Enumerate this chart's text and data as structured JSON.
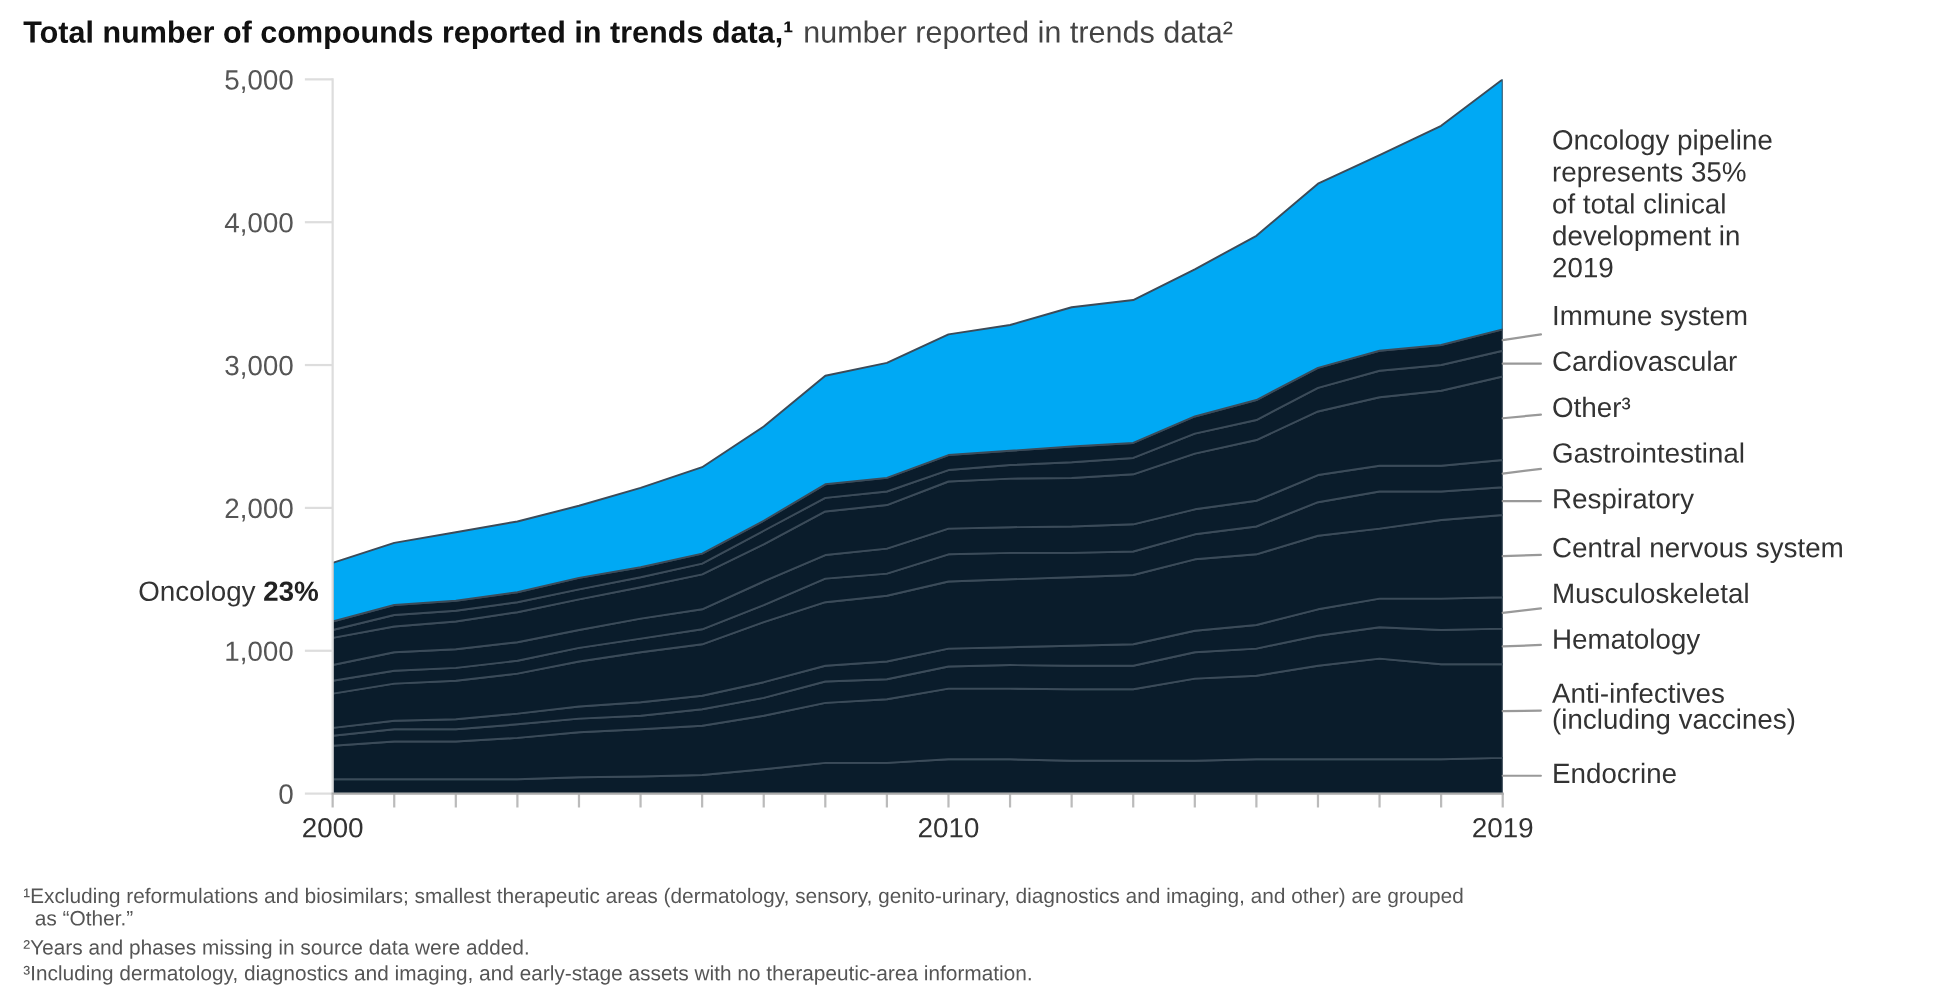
{
  "chart_data": {
    "type": "area",
    "stacked": true,
    "title": "Total number of compounds reported in trends data,¹",
    "subtitle": "number reported in trends data²",
    "x": [
      2000,
      2001,
      2002,
      2003,
      2004,
      2005,
      2006,
      2007,
      2008,
      2009,
      2010,
      2011,
      2012,
      2013,
      2014,
      2015,
      2016,
      2017,
      2018,
      2019
    ],
    "series": [
      {
        "name": "Endocrine",
        "color": "#0a1c2b",
        "values": [
          100,
          100,
          100,
          100,
          115,
          120,
          130,
          170,
          215,
          215,
          240,
          240,
          230,
          230,
          230,
          240,
          240,
          240,
          240,
          250
        ]
      },
      {
        "name": "Anti-infectives\n(including vaccines)",
        "color": "#0a1c2b",
        "values": [
          235,
          265,
          265,
          290,
          315,
          330,
          345,
          375,
          420,
          445,
          495,
          495,
          500,
          500,
          575,
          585,
          655,
          705,
          665,
          655
        ]
      },
      {
        "name": "Hematology",
        "color": "#0a1c2b",
        "values": [
          70,
          85,
          85,
          95,
          95,
          95,
          115,
          125,
          150,
          140,
          155,
          165,
          165,
          165,
          185,
          190,
          210,
          220,
          240,
          250
        ]
      },
      {
        "name": "Musculoskeletal",
        "color": "#0a1c2b",
        "values": [
          55,
          60,
          70,
          75,
          85,
          95,
          95,
          110,
          110,
          125,
          125,
          125,
          140,
          150,
          150,
          165,
          185,
          200,
          220,
          220
        ]
      },
      {
        "name": "Central nervous system",
        "color": "#0a1c2b",
        "values": [
          240,
          260,
          270,
          280,
          315,
          350,
          360,
          420,
          445,
          460,
          470,
          475,
          480,
          485,
          500,
          495,
          515,
          490,
          550,
          575
        ]
      },
      {
        "name": "Respiratory",
        "color": "#0a1c2b",
        "values": [
          90,
          90,
          90,
          90,
          95,
          95,
          105,
          120,
          165,
          155,
          190,
          185,
          170,
          165,
          175,
          195,
          235,
          260,
          200,
          195
        ]
      },
      {
        "name": "Gastrointestinal",
        "color": "#0a1c2b",
        "values": [
          110,
          130,
          130,
          130,
          125,
          140,
          140,
          165,
          165,
          175,
          180,
          180,
          185,
          190,
          175,
          180,
          190,
          180,
          180,
          190
        ]
      },
      {
        "name": "Other³",
        "color": "#0a1c2b",
        "values": [
          190,
          180,
          195,
          210,
          215,
          220,
          245,
          260,
          305,
          305,
          330,
          340,
          340,
          350,
          390,
          425,
          445,
          480,
          525,
          585
        ]
      },
      {
        "name": "Cardiovascular",
        "color": "#0a1c2b",
        "values": [
          55,
          80,
          75,
          70,
          70,
          70,
          75,
          95,
          95,
          95,
          80,
          95,
          110,
          115,
          140,
          140,
          165,
          185,
          180,
          180
        ]
      },
      {
        "name": "Immune system",
        "color": "#0a1c2b",
        "values": [
          60,
          70,
          70,
          70,
          80,
          70,
          70,
          70,
          95,
          95,
          105,
          100,
          110,
          105,
          120,
          140,
          140,
          140,
          140,
          150
        ]
      },
      {
        "name": "Oncology",
        "color": "#00a9f4",
        "values": [
          410,
          435,
          480,
          495,
          505,
          555,
          605,
          660,
          760,
          805,
          845,
          880,
          975,
          1000,
          1030,
          1150,
          1290,
          1370,
          1535,
          1750
        ]
      }
    ],
    "xlim": [
      2000,
      2019
    ],
    "ylim": [
      0,
      5000
    ],
    "xticks": [
      2000,
      {
        "value": 2001,
        "label": null
      },
      {
        "value": 2002,
        "label": null
      },
      {
        "value": 2003,
        "label": null
      },
      {
        "value": 2004,
        "label": null
      },
      {
        "value": 2005,
        "label": null
      },
      {
        "value": 2006,
        "label": null
      },
      {
        "value": 2007,
        "label": null
      },
      {
        "value": 2008,
        "label": null
      },
      {
        "value": 2009,
        "label": null
      },
      2010,
      {
        "value": 2011,
        "label": null
      },
      {
        "value": 2012,
        "label": null
      },
      {
        "value": 2013,
        "label": null
      },
      {
        "value": 2014,
        "label": null
      },
      {
        "value": 2015,
        "label": null
      },
      {
        "value": 2016,
        "label": null
      },
      {
        "value": 2017,
        "label": null
      },
      {
        "value": 2018,
        "label": null
      },
      2019
    ],
    "yticks": [
      0,
      {
        "value": 1000,
        "label": "1,000"
      },
      {
        "value": 2000,
        "label": "2,000"
      },
      {
        "value": 3000,
        "label": "3,000"
      },
      {
        "value": 4000,
        "label": "4,000"
      },
      {
        "value": 5000,
        "label": "5,000"
      }
    ],
    "grid": false,
    "legend": false,
    "annotations": [
      {
        "text": "23%",
        "x": 2000,
        "y": 1400
      },
      "Oncology pipeline\nrepresents 35%\nof total clinical\ndevelopment in\n2019",
      "¹Excluding reformulations and biosimilars; smallest therapeutic areas (dermatology, sensory, genito-urinary, diagnostics and imaging, and other) are grouped\n  as “Other.”",
      "²Years and phases missing in source data were added.",
      "³Including dermatology, diagnostics and imaging, and early-stage assets with no therapeutic-area information."
    ]
  }
}
